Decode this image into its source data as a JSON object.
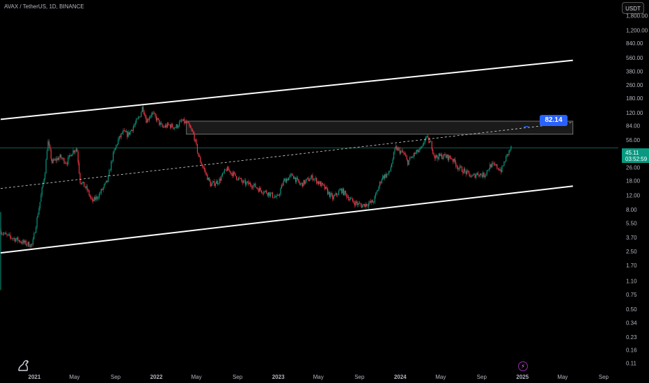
{
  "symbol_header": "AVAX / TetherUS, 1D, BINANCE",
  "currency_button": "USDT",
  "current_price": "45.11",
  "countdown": "03:52:59",
  "callout_value": "82.14",
  "bolt_icon": "bolt-icon",
  "logo_icon": "tradingview-logo-icon",
  "colors": {
    "background": "#000000",
    "up": "#089981",
    "down": "#f23645",
    "channel": "#ffffff",
    "callout": "#2962ff",
    "price_line": "#1e6b5c"
  },
  "chart_data": {
    "type": "candlestick",
    "y_scale": "log",
    "ylim": [
      0.09,
      2800
    ],
    "xlim": [
      "2020-09-20",
      "2025-10-15"
    ],
    "y_ticks": [
      "1,800.00",
      "1,200.00",
      "840.00",
      "560.00",
      "380.00",
      "260.00",
      "180.00",
      "120.00",
      "84.00",
      "56.00",
      "26.00",
      "18.00",
      "12.00",
      "8.00",
      "5.50",
      "3.70",
      "2.50",
      "1.70",
      "1.10",
      "0.75",
      "0.50",
      "0.34",
      "0.23",
      "0.16",
      "0.11"
    ],
    "x_ticks": [
      {
        "label": "2021",
        "date": "2021-01-01"
      },
      {
        "label": "May",
        "date": "2021-05-01"
      },
      {
        "label": "Sep",
        "date": "2021-09-01"
      },
      {
        "label": "2022",
        "date": "2022-01-01"
      },
      {
        "label": "May",
        "date": "2022-05-01"
      },
      {
        "label": "Sep",
        "date": "2022-09-01"
      },
      {
        "label": "2023",
        "date": "2023-01-01"
      },
      {
        "label": "May",
        "date": "2023-05-01"
      },
      {
        "label": "Sep",
        "date": "2023-09-01"
      },
      {
        "label": "2024",
        "date": "2024-01-01"
      },
      {
        "label": "May",
        "date": "2024-05-01"
      },
      {
        "label": "Sep",
        "date": "2024-09-01"
      },
      {
        "label": "2025",
        "date": "2025-01-01"
      },
      {
        "label": "May",
        "date": "2025-05-01"
      },
      {
        "label": "Sep",
        "date": "2025-09-01"
      }
    ],
    "price_path": [
      [
        "2020-09-22",
        4.5
      ],
      [
        "2020-10-10",
        3.9
      ],
      [
        "2020-11-10",
        3.5
      ],
      [
        "2020-12-10",
        3.1
      ],
      [
        "2020-12-28",
        3.0
      ],
      [
        "2021-01-20",
        10
      ],
      [
        "2021-02-05",
        25
      ],
      [
        "2021-02-12",
        55
      ],
      [
        "2021-02-25",
        30
      ],
      [
        "2021-03-20",
        35
      ],
      [
        "2021-04-10",
        30
      ],
      [
        "2021-04-25",
        40
      ],
      [
        "2021-05-10",
        45
      ],
      [
        "2021-05-20",
        18
      ],
      [
        "2021-06-10",
        14
      ],
      [
        "2021-06-25",
        10
      ],
      [
        "2021-07-15",
        12
      ],
      [
        "2021-08-10",
        18
      ],
      [
        "2021-08-25",
        35
      ],
      [
        "2021-09-10",
        55
      ],
      [
        "2021-09-25",
        70
      ],
      [
        "2021-10-10",
        65
      ],
      [
        "2021-10-25",
        80
      ],
      [
        "2021-11-15",
        110
      ],
      [
        "2021-11-23",
        144
      ],
      [
        "2021-12-05",
        95
      ],
      [
        "2021-12-20",
        120
      ],
      [
        "2022-01-05",
        100
      ],
      [
        "2022-01-20",
        80
      ],
      [
        "2022-02-10",
        85
      ],
      [
        "2022-03-01",
        80
      ],
      [
        "2022-03-20",
        95
      ],
      [
        "2022-04-05",
        90
      ],
      [
        "2022-04-25",
        65
      ],
      [
        "2022-05-10",
        35
      ],
      [
        "2022-05-25",
        25
      ],
      [
        "2022-06-15",
        16
      ],
      [
        "2022-07-10",
        18
      ],
      [
        "2022-08-01",
        25
      ],
      [
        "2022-08-20",
        22
      ],
      [
        "2022-09-20",
        17
      ],
      [
        "2022-10-20",
        16
      ],
      [
        "2022-11-09",
        14
      ],
      [
        "2022-12-01",
        13
      ],
      [
        "2022-12-31",
        11
      ],
      [
        "2023-01-20",
        18
      ],
      [
        "2023-02-15",
        21
      ],
      [
        "2023-03-10",
        16
      ],
      [
        "2023-04-15",
        20
      ],
      [
        "2023-05-20",
        15
      ],
      [
        "2023-06-15",
        11
      ],
      [
        "2023-07-10",
        14
      ],
      [
        "2023-08-15",
        10
      ],
      [
        "2023-09-10",
        9
      ],
      [
        "2023-10-15",
        10
      ],
      [
        "2023-11-10",
        20
      ],
      [
        "2023-12-01",
        22
      ],
      [
        "2023-12-20",
        45
      ],
      [
        "2024-01-15",
        38
      ],
      [
        "2024-01-25",
        30
      ],
      [
        "2024-02-15",
        38
      ],
      [
        "2024-03-10",
        45
      ],
      [
        "2024-03-18",
        62
      ],
      [
        "2024-04-05",
        50
      ],
      [
        "2024-04-15",
        35
      ],
      [
        "2024-05-10",
        36
      ],
      [
        "2024-06-05",
        34
      ],
      [
        "2024-06-25",
        26
      ],
      [
        "2024-07-10",
        24
      ],
      [
        "2024-08-05",
        20
      ],
      [
        "2024-08-20",
        22
      ],
      [
        "2024-09-10",
        21
      ],
      [
        "2024-09-30",
        28
      ],
      [
        "2024-10-15",
        27
      ],
      [
        "2024-11-01",
        24
      ],
      [
        "2024-11-12",
        32
      ],
      [
        "2024-11-20",
        38
      ],
      [
        "2024-11-29",
        45.11
      ]
    ],
    "channel_lines": [
      {
        "name": "upper",
        "from": [
          "2020-09-22",
          100
        ],
        "to": [
          "2025-06-01",
          520
        ]
      },
      {
        "name": "lower",
        "from": [
          "2020-09-22",
          2.4
        ],
        "to": [
          "2025-06-01",
          15.5
        ]
      },
      {
        "name": "median",
        "style": "dashed",
        "from": [
          "2020-09-22",
          14.5
        ],
        "to": [
          "2025-06-01",
          92
        ]
      }
    ],
    "zone": {
      "from": "2022-04-01",
      "to": "2025-06-01",
      "low": 66,
      "high": 95
    },
    "current_price": 45.11,
    "callout": {
      "date": "2025-01-10",
      "value": 82.14
    }
  }
}
